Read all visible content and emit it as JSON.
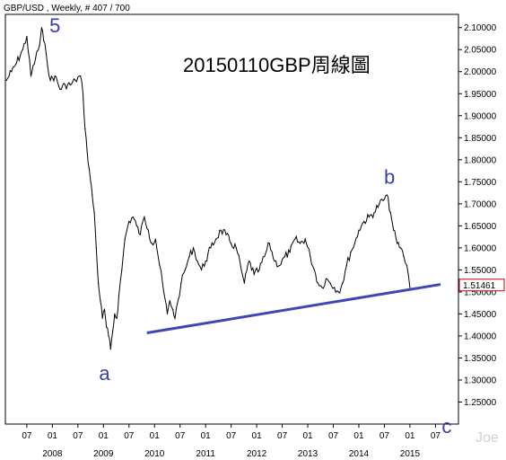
{
  "header": "GBP/USD , Weekly, # 407 / 700",
  "title": "20150110GBP周線圖",
  "watermark": "Joe",
  "chart_data": {
    "type": "line",
    "title": "20150110GBP周線圖",
    "symbol": "GBP/USD",
    "timeframe": "Weekly",
    "bar_position": "407 / 700",
    "ylim": [
      1.2,
      2.13
    ],
    "y_ticks": [
      "2.10000",
      "2.05000",
      "2.00000",
      "1.95000",
      "1.90000",
      "1.85000",
      "1.80000",
      "1.75000",
      "1.70000",
      "1.65000",
      "1.60000",
      "1.55000",
      "1.50000",
      "1.45000",
      "1.40000",
      "1.35000",
      "1.30000",
      "1.25000"
    ],
    "x_month_ticks": [
      {
        "label": "07",
        "t": 2007.5
      },
      {
        "label": "01",
        "t": 2008.0
      },
      {
        "label": "07",
        "t": 2008.5
      },
      {
        "label": "01",
        "t": 2009.0
      },
      {
        "label": "07",
        "t": 2009.5
      },
      {
        "label": "01",
        "t": 2010.0
      },
      {
        "label": "07",
        "t": 2010.5
      },
      {
        "label": "01",
        "t": 2011.0
      },
      {
        "label": "07",
        "t": 2011.5
      },
      {
        "label": "01",
        "t": 2012.0
      },
      {
        "label": "07",
        "t": 2012.5
      },
      {
        "label": "01",
        "t": 2013.0
      },
      {
        "label": "07",
        "t": 2013.5
      },
      {
        "label": "01",
        "t": 2014.0
      },
      {
        "label": "07",
        "t": 2014.5
      },
      {
        "label": "01",
        "t": 2015.0
      },
      {
        "label": "07",
        "t": 2015.5
      }
    ],
    "x_year_labels": [
      {
        "label": "2008",
        "t": 2008.0
      },
      {
        "label": "2009",
        "t": 2009.0
      },
      {
        "label": "2010",
        "t": 2010.0
      },
      {
        "label": "2011",
        "t": 2011.0
      },
      {
        "label": "2012",
        "t": 2012.0
      },
      {
        "label": "2013",
        "t": 2013.0
      },
      {
        "label": "2014",
        "t": 2014.0
      },
      {
        "label": "2015",
        "t": 2015.0
      }
    ],
    "xlim": [
      2007.08,
      2015.95
    ],
    "current_price": "1.51461",
    "series": [
      {
        "name": "GBP/USD",
        "color": "#000000",
        "x": [
          2007.1,
          2007.2,
          2007.3,
          2007.42,
          2007.5,
          2007.58,
          2007.67,
          2007.75,
          2007.79,
          2007.83,
          2007.88,
          2007.96,
          2008.05,
          2008.15,
          2008.25,
          2008.35,
          2008.45,
          2008.55,
          2008.6,
          2008.64,
          2008.68,
          2008.72,
          2008.75,
          2008.78,
          2008.82,
          2008.86,
          2008.9,
          2008.94,
          2008.98,
          2009.02,
          2009.06,
          2009.1,
          2009.14,
          2009.18,
          2009.22,
          2009.26,
          2009.3,
          2009.36,
          2009.42,
          2009.5,
          2009.58,
          2009.65,
          2009.72,
          2009.8,
          2009.88,
          2009.95,
          2010.02,
          2010.1,
          2010.18,
          2010.25,
          2010.3,
          2010.36,
          2010.4,
          2010.46,
          2010.52,
          2010.6,
          2010.68,
          2010.76,
          2010.84,
          2010.92,
          2011.0,
          2011.1,
          2011.2,
          2011.3,
          2011.4,
          2011.5,
          2011.6,
          2011.7,
          2011.76,
          2011.85,
          2011.95,
          2012.05,
          2012.15,
          2012.25,
          2012.35,
          2012.45,
          2012.55,
          2012.65,
          2012.75,
          2012.85,
          2012.95,
          2013.05,
          2013.13,
          2013.2,
          2013.28,
          2013.36,
          2013.44,
          2013.52,
          2013.6,
          2013.68,
          2013.76,
          2013.84,
          2013.92,
          2014.0,
          2014.1,
          2014.2,
          2014.3,
          2014.4,
          2014.5,
          2014.55,
          2014.62,
          2014.68,
          2014.75,
          2014.82,
          2014.88,
          2014.94,
          2015.0
        ],
        "values": [
          1.98,
          2.0,
          2.02,
          2.05,
          2.08,
          1.99,
          2.03,
          2.06,
          2.1,
          2.07,
          2.04,
          1.98,
          1.99,
          1.96,
          1.97,
          1.97,
          1.98,
          1.99,
          1.95,
          1.87,
          1.82,
          1.78,
          1.75,
          1.72,
          1.68,
          1.6,
          1.52,
          1.48,
          1.44,
          1.46,
          1.42,
          1.4,
          1.37,
          1.41,
          1.45,
          1.44,
          1.49,
          1.55,
          1.62,
          1.66,
          1.67,
          1.65,
          1.63,
          1.67,
          1.64,
          1.61,
          1.62,
          1.56,
          1.5,
          1.45,
          1.48,
          1.46,
          1.44,
          1.48,
          1.52,
          1.55,
          1.58,
          1.6,
          1.57,
          1.55,
          1.57,
          1.6,
          1.62,
          1.64,
          1.63,
          1.61,
          1.6,
          1.55,
          1.52,
          1.57,
          1.54,
          1.55,
          1.58,
          1.61,
          1.57,
          1.56,
          1.58,
          1.59,
          1.62,
          1.61,
          1.62,
          1.58,
          1.55,
          1.52,
          1.51,
          1.53,
          1.52,
          1.51,
          1.5,
          1.52,
          1.56,
          1.59,
          1.61,
          1.64,
          1.66,
          1.67,
          1.68,
          1.7,
          1.71,
          1.72,
          1.68,
          1.64,
          1.61,
          1.6,
          1.58,
          1.56,
          1.51
        ]
      }
    ],
    "trendline": {
      "color": "#3f47b5",
      "x": [
        2009.85,
        2015.6
      ],
      "values": [
        1.407,
        1.517
      ]
    },
    "annotations": [
      {
        "text": "5",
        "t": 2008.05,
        "v": 2.089
      },
      {
        "text": "a",
        "t": 2009.02,
        "v": 1.3
      },
      {
        "text": "b",
        "t": 2014.6,
        "v": 1.746
      },
      {
        "text": "c",
        "t": 2015.72,
        "v": 1.18
      }
    ]
  }
}
